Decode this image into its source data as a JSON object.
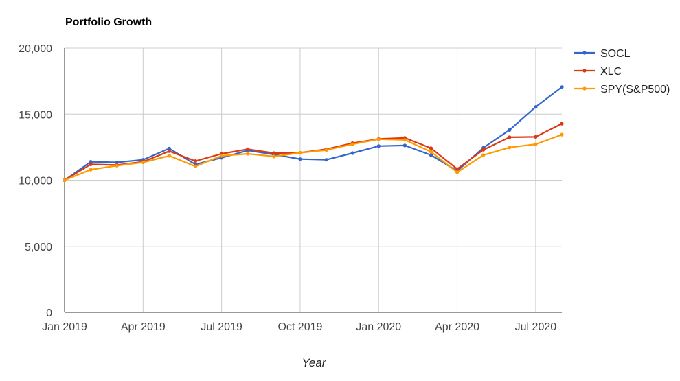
{
  "chart_data": {
    "type": "line",
    "title": "Portfolio Growth",
    "xlabel": "Year",
    "ylabel": "",
    "ylim": [
      0,
      20000
    ],
    "y_ticks": [
      0,
      5000,
      10000,
      15000,
      20000
    ],
    "y_tick_labels": [
      "0",
      "5,000",
      "10,000",
      "15,000",
      "20,000"
    ],
    "x_ticks": [
      "2019-01",
      "2019-04",
      "2019-07",
      "2019-10",
      "2020-01",
      "2020-04",
      "2020-07"
    ],
    "x_tick_labels": [
      "Jan 2019",
      "Apr 2019",
      "Jul 2019",
      "Oct 2019",
      "Jan 2020",
      "Apr 2020",
      "Jul 2020"
    ],
    "x": [
      "2019-01",
      "2019-02",
      "2019-03",
      "2019-04",
      "2019-05",
      "2019-06",
      "2019-07",
      "2019-08",
      "2019-09",
      "2019-10",
      "2019-11",
      "2019-12",
      "2020-01",
      "2020-02",
      "2020-03",
      "2020-04",
      "2020-05",
      "2020-06",
      "2020-07",
      "2020-08"
    ],
    "grid": true,
    "legend_position": "right",
    "series": [
      {
        "name": "SOCL",
        "color": "#3366cc",
        "values": [
          10000,
          11400,
          11350,
          11550,
          12400,
          11200,
          11700,
          12250,
          11950,
          11600,
          11550,
          12050,
          12580,
          12630,
          11900,
          10700,
          12450,
          13800,
          15550,
          17050
        ]
      },
      {
        "name": "XLC",
        "color": "#dc3912",
        "values": [
          10000,
          11200,
          11150,
          11400,
          12200,
          11450,
          12000,
          12350,
          12050,
          12080,
          12350,
          12800,
          13120,
          13200,
          12420,
          10850,
          12300,
          13250,
          13280,
          14280
        ]
      },
      {
        "name": "SPY(S&P500)",
        "color": "#ff9900",
        "values": [
          10000,
          10800,
          11100,
          11350,
          11850,
          11050,
          11850,
          12000,
          11800,
          12080,
          12280,
          12720,
          13100,
          13050,
          12150,
          10600,
          11900,
          12480,
          12720,
          13450
        ]
      }
    ]
  }
}
